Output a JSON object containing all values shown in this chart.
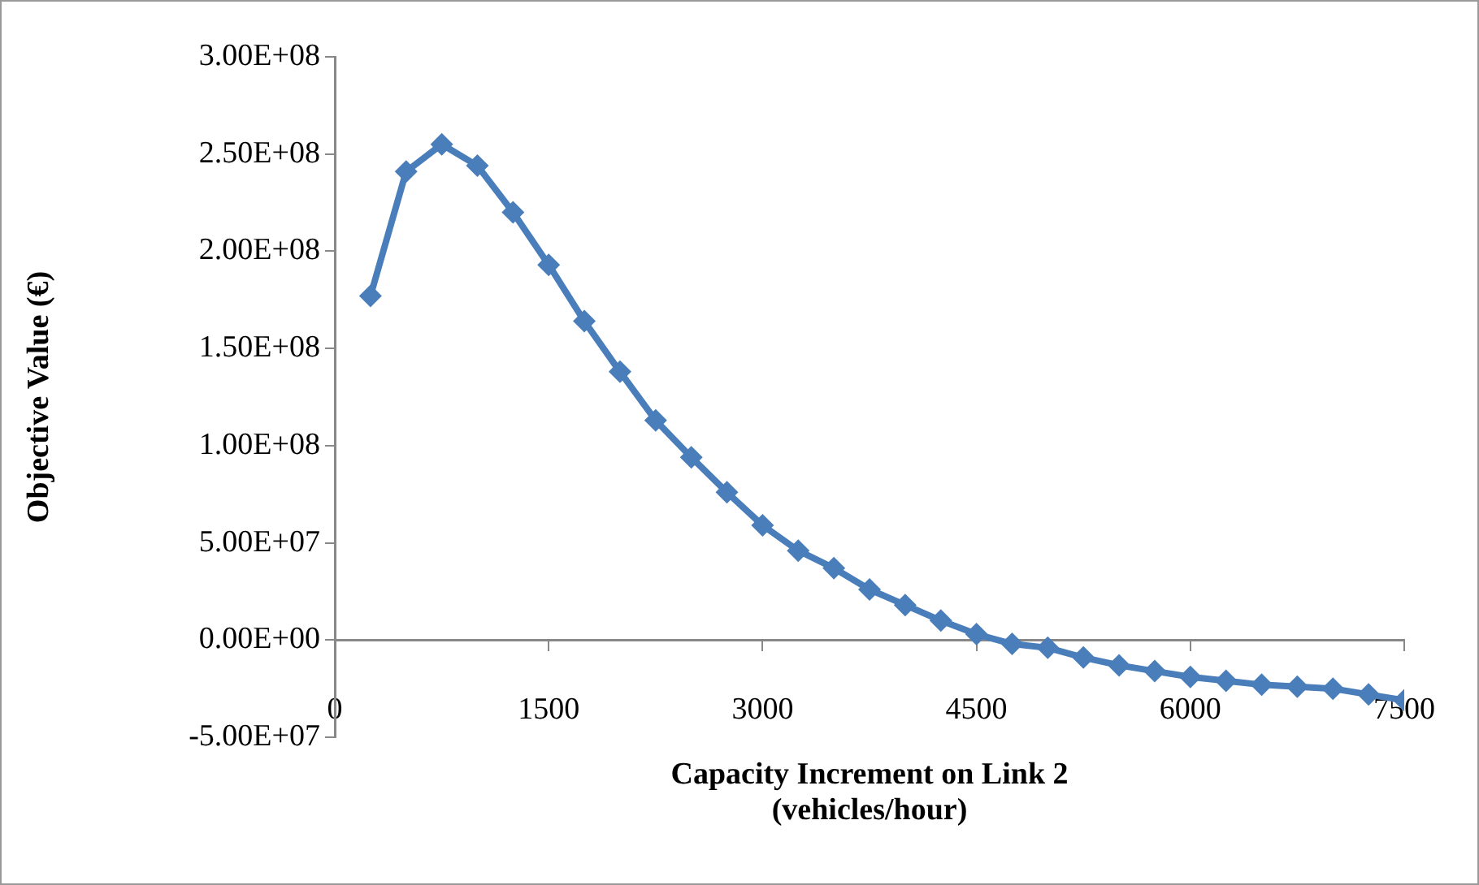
{
  "chart_data": {
    "type": "line",
    "xlabel": "Capacity Increment on Link 2\n(vehicles/hour)",
    "ylabel": "Objective Value (€)",
    "x": [
      250,
      500,
      750,
      1000,
      1250,
      1500,
      1750,
      2000,
      2250,
      2500,
      2750,
      3000,
      3250,
      3500,
      3750,
      4000,
      4250,
      4500,
      4750,
      5000,
      5250,
      5500,
      5750,
      6000,
      6250,
      6500,
      6750,
      7000,
      7250,
      7500
    ],
    "series": [
      {
        "color": "#4a7ebb",
        "values": [
          177000000,
          241000000,
          255000000,
          244000000,
          220000000,
          193000000,
          164000000,
          138000000,
          113000000,
          94000000,
          76000000,
          59000000,
          46000000,
          37000000,
          26000000,
          18000000,
          10000000,
          3000000,
          -2000000,
          -4000000,
          -9000000,
          -13000000,
          -16000000,
          -19000000,
          -21000000,
          -23000000,
          -24000000,
          -25000000,
          -28000000,
          -31000000
        ]
      }
    ],
    "xlim": [
      0,
      7500
    ],
    "xticks": [
      0,
      1500,
      3000,
      4500,
      6000,
      7500
    ],
    "ylim": [
      -50000000,
      300000000
    ],
    "yticks": [
      {
        "value": -50000000,
        "label": "-5.00E+07"
      },
      {
        "value": 0,
        "label": "0.00E+00"
      },
      {
        "value": 50000000,
        "label": "5.00E+07"
      },
      {
        "value": 100000000,
        "label": "1.00E+08"
      },
      {
        "value": 150000000,
        "label": "1.50E+08"
      },
      {
        "value": 200000000,
        "label": "2.00E+08"
      },
      {
        "value": 250000000,
        "label": "2.50E+08"
      },
      {
        "value": 300000000,
        "label": "3.00E+08"
      }
    ],
    "grid": false,
    "legend": false,
    "marker": "diamond",
    "line_style": "solid"
  }
}
